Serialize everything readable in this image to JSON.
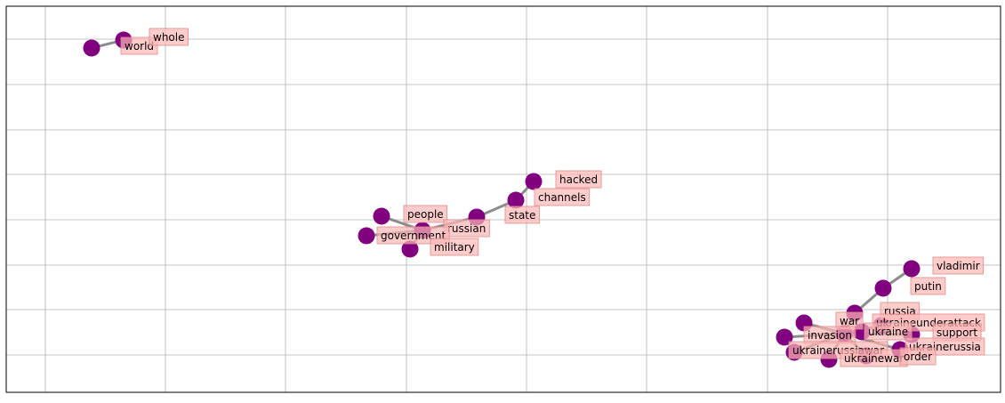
{
  "colors": {
    "node": "#800080",
    "edge": "#808080",
    "label_bg": "#ffb6b6",
    "label_border": "#e08a8a",
    "grid": "#b0b0b0",
    "frame": "#000000"
  },
  "chart_data": {
    "type": "network",
    "grid": true,
    "nodes": [
      {
        "id": "world",
        "label": "world"
      },
      {
        "id": "whole",
        "label": "whole"
      },
      {
        "id": "hacked",
        "label": "hacked"
      },
      {
        "id": "channels",
        "label": "channels"
      },
      {
        "id": "state",
        "label": "state"
      },
      {
        "id": "people",
        "label": "people"
      },
      {
        "id": "russian",
        "label": "russian"
      },
      {
        "id": "government",
        "label": "government"
      },
      {
        "id": "military",
        "label": "military"
      },
      {
        "id": "vladimir",
        "label": "vladimir"
      },
      {
        "id": "putin",
        "label": "putin"
      },
      {
        "id": "russia",
        "label": "russia"
      },
      {
        "id": "war",
        "label": "war"
      },
      {
        "id": "ukraineunderattack",
        "label": "ukraineunderattack"
      },
      {
        "id": "invasion",
        "label": "invasion"
      },
      {
        "id": "ukraine",
        "label": "ukraine"
      },
      {
        "id": "support",
        "label": "support"
      },
      {
        "id": "ukrainerussia",
        "label": "ukrainerussia"
      },
      {
        "id": "ukrainerussiawar",
        "label": "ukrainerussiawar"
      },
      {
        "id": "ukrainewar",
        "label": "ukrainewar"
      },
      {
        "id": "order",
        "label": "order"
      },
      {
        "id": "ukr3",
        "label": ""
      }
    ],
    "edges": [
      [
        "world",
        "whole"
      ],
      [
        "hacked",
        "channels"
      ],
      [
        "channels",
        "state"
      ],
      [
        "state",
        "russian"
      ],
      [
        "russian",
        "government"
      ],
      [
        "russian",
        "people"
      ],
      [
        "russian",
        "military"
      ],
      [
        "vladimir",
        "putin"
      ],
      [
        "putin",
        "russia"
      ],
      [
        "russia",
        "invasion"
      ],
      [
        "war",
        "invasion"
      ],
      [
        "ukraineunderattack",
        "invasion"
      ],
      [
        "ukraine",
        "invasion"
      ],
      [
        "support",
        "invasion"
      ],
      [
        "ukrainerussia",
        "invasion"
      ],
      [
        "order",
        "invasion"
      ],
      [
        "ukrainewar",
        "invasion"
      ],
      [
        "ukrainerussiawar",
        "invasion"
      ],
      [
        "ukr3",
        "invasion"
      ]
    ]
  }
}
